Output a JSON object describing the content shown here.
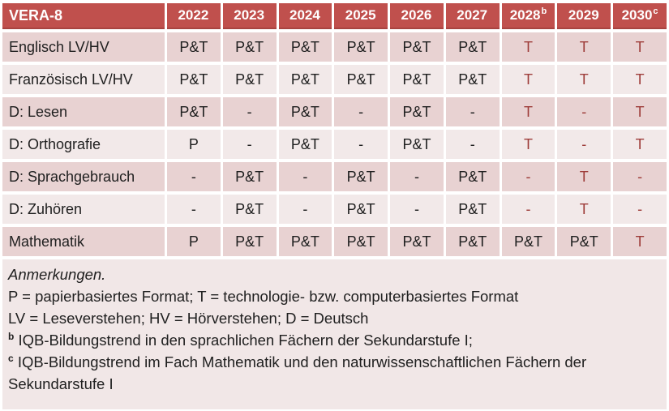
{
  "colors": {
    "header_bg": "#C0504D",
    "header_border": "#A84340",
    "row_dark": "#E8D2D2",
    "row_light": "#F2E9E9",
    "notes_bg": "#F1E7E7",
    "accent_text": "#9E3D3A"
  },
  "table": {
    "title": "VERA-8",
    "header": {
      "years": [
        {
          "text": "2022",
          "sup": ""
        },
        {
          "text": "2023",
          "sup": ""
        },
        {
          "text": "2024",
          "sup": ""
        },
        {
          "text": "2025",
          "sup": ""
        },
        {
          "text": "2026",
          "sup": ""
        },
        {
          "text": "2027",
          "sup": ""
        },
        {
          "text": "2028",
          "sup": "b"
        },
        {
          "text": "2029",
          "sup": ""
        },
        {
          "text": "2030",
          "sup": "c"
        }
      ]
    },
    "rows": [
      {
        "label": "Englisch LV/HV",
        "values": [
          {
            "t": "P&T",
            "red": false
          },
          {
            "t": "P&T",
            "red": false
          },
          {
            "t": "P&T",
            "red": false
          },
          {
            "t": "P&T",
            "red": false
          },
          {
            "t": "P&T",
            "red": false
          },
          {
            "t": "P&T",
            "red": false
          },
          {
            "t": "T",
            "red": true
          },
          {
            "t": "T",
            "red": true
          },
          {
            "t": "T",
            "red": true
          }
        ]
      },
      {
        "label": "Französisch LV/HV",
        "values": [
          {
            "t": "P&T",
            "red": false
          },
          {
            "t": "P&T",
            "red": false
          },
          {
            "t": "P&T",
            "red": false
          },
          {
            "t": "P&T",
            "red": false
          },
          {
            "t": "P&T",
            "red": false
          },
          {
            "t": "P&T",
            "red": false
          },
          {
            "t": "T",
            "red": true
          },
          {
            "t": "T",
            "red": true
          },
          {
            "t": "T",
            "red": true
          }
        ]
      },
      {
        "label": "D: Lesen",
        "values": [
          {
            "t": "P&T",
            "red": false
          },
          {
            "t": "-",
            "red": false
          },
          {
            "t": "P&T",
            "red": false
          },
          {
            "t": "-",
            "red": false
          },
          {
            "t": "P&T",
            "red": false
          },
          {
            "t": "-",
            "red": false
          },
          {
            "t": "T",
            "red": true
          },
          {
            "t": "-",
            "red": true
          },
          {
            "t": "T",
            "red": true
          }
        ]
      },
      {
        "label": "D: Orthografie",
        "values": [
          {
            "t": "P",
            "red": false
          },
          {
            "t": "-",
            "red": false
          },
          {
            "t": "P&T",
            "red": false
          },
          {
            "t": "-",
            "red": false
          },
          {
            "t": "P&T",
            "red": false
          },
          {
            "t": "-",
            "red": false
          },
          {
            "t": "T",
            "red": true
          },
          {
            "t": "-",
            "red": true
          },
          {
            "t": "T",
            "red": true
          }
        ]
      },
      {
        "label": "D: Sprachgebrauch",
        "values": [
          {
            "t": "-",
            "red": false
          },
          {
            "t": "P&T",
            "red": false
          },
          {
            "t": "-",
            "red": false
          },
          {
            "t": "P&T",
            "red": false
          },
          {
            "t": "-",
            "red": false
          },
          {
            "t": "P&T",
            "red": false
          },
          {
            "t": "-",
            "red": true
          },
          {
            "t": "T",
            "red": true
          },
          {
            "t": "-",
            "red": true
          }
        ]
      },
      {
        "label": "D: Zuhören",
        "values": [
          {
            "t": "-",
            "red": false
          },
          {
            "t": "P&T",
            "red": false
          },
          {
            "t": "-",
            "red": false
          },
          {
            "t": "P&T",
            "red": false
          },
          {
            "t": "-",
            "red": false
          },
          {
            "t": "P&T",
            "red": false
          },
          {
            "t": "-",
            "red": true
          },
          {
            "t": "T",
            "red": true
          },
          {
            "t": "-",
            "red": true
          }
        ]
      },
      {
        "label": "Mathematik",
        "values": [
          {
            "t": "P",
            "red": false
          },
          {
            "t": "P&T",
            "red": false
          },
          {
            "t": "P&T",
            "red": false
          },
          {
            "t": "P&T",
            "red": false
          },
          {
            "t": "P&T",
            "red": false
          },
          {
            "t": "P&T",
            "red": false
          },
          {
            "t": "P&T",
            "red": false
          },
          {
            "t": "P&T",
            "red": false
          },
          {
            "t": "T",
            "red": true
          }
        ]
      }
    ]
  },
  "notes": {
    "title": "Anmerkungen.",
    "formats": "P = papierbasiertes Format; T = technologie- bzw. computerbasiertes Format",
    "abbreviations": "LV = Leseverstehen; HV = Hörverstehen; D = Deutsch",
    "note_b": {
      "sup": "b",
      "text": "IQB-Bildungstrend in den sprachlichen Fächern der Sekundarstufe I;"
    },
    "note_c": {
      "sup": "c",
      "text": "IQB-Bildungstrend im Fach Mathematik und den naturwissenschaftlichen Fächern der Sekundarstufe I"
    }
  }
}
